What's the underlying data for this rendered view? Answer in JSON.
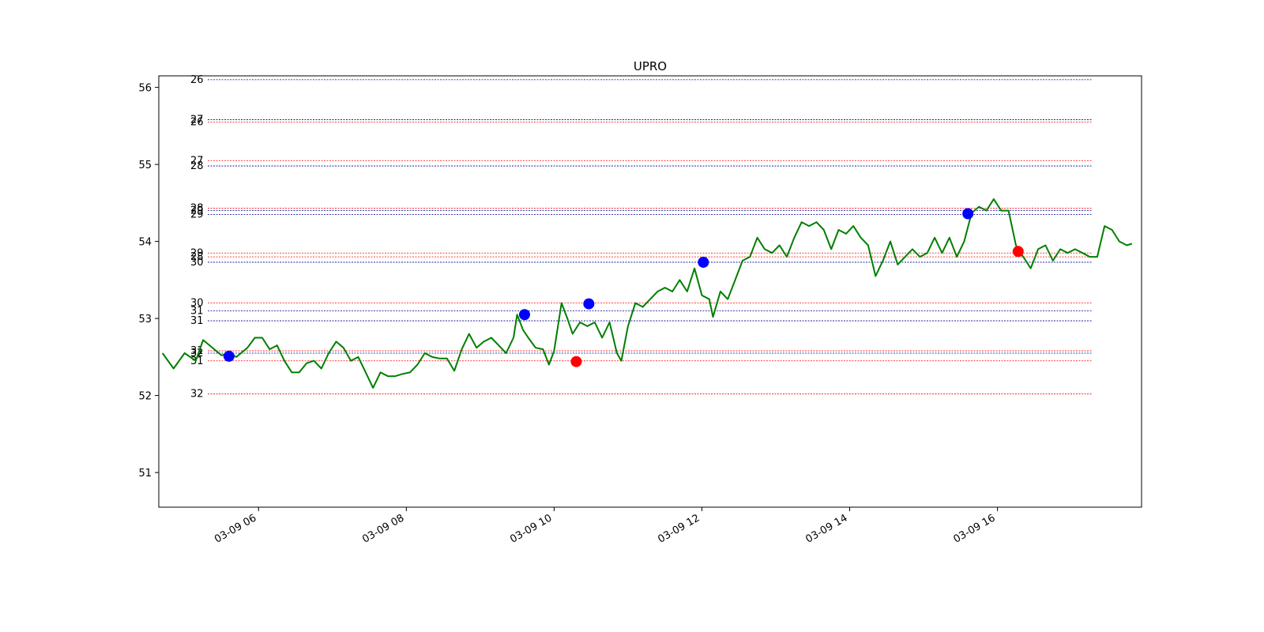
{
  "chart_data": {
    "type": "line",
    "title": "UPRO",
    "xlabel": "",
    "ylabel": "",
    "ylim": [
      50.55,
      56.15
    ],
    "xlim_hours": [
      4.65,
      17.95
    ],
    "grid": false,
    "x_tick_labels": [
      {
        "hour": 6,
        "label": "03-09 06"
      },
      {
        "hour": 8,
        "label": "03-09 08"
      },
      {
        "hour": 10,
        "label": "03-09 10"
      },
      {
        "hour": 12,
        "label": "03-09 12"
      },
      {
        "hour": 14,
        "label": "03-09 14"
      },
      {
        "hour": 16,
        "label": "03-09 16"
      }
    ],
    "y_ticks": [
      51,
      52,
      53,
      54,
      55,
      56
    ],
    "price_series": {
      "name": "",
      "color": "#007f00",
      "points": [
        [
          4.7,
          52.55
        ],
        [
          4.85,
          52.35
        ],
        [
          5.0,
          52.55
        ],
        [
          5.15,
          52.45
        ],
        [
          5.25,
          52.72
        ],
        [
          5.4,
          52.6
        ],
        [
          5.5,
          52.52
        ],
        [
          5.6,
          52.55
        ],
        [
          5.7,
          52.5
        ],
        [
          5.85,
          52.62
        ],
        [
          5.95,
          52.75
        ],
        [
          6.05,
          52.75
        ],
        [
          6.15,
          52.6
        ],
        [
          6.25,
          52.65
        ],
        [
          6.35,
          52.45
        ],
        [
          6.45,
          52.3
        ],
        [
          6.55,
          52.3
        ],
        [
          6.65,
          52.42
        ],
        [
          6.75,
          52.45
        ],
        [
          6.85,
          52.35
        ],
        [
          6.95,
          52.55
        ],
        [
          7.05,
          52.7
        ],
        [
          7.15,
          52.62
        ],
        [
          7.25,
          52.45
        ],
        [
          7.35,
          52.5
        ],
        [
          7.45,
          52.3
        ],
        [
          7.55,
          52.1
        ],
        [
          7.65,
          52.3
        ],
        [
          7.75,
          52.25
        ],
        [
          7.85,
          52.25
        ],
        [
          7.95,
          52.28
        ],
        [
          8.05,
          52.3
        ],
        [
          8.15,
          52.4
        ],
        [
          8.25,
          52.55
        ],
        [
          8.35,
          52.5
        ],
        [
          8.45,
          52.48
        ],
        [
          8.55,
          52.48
        ],
        [
          8.65,
          52.32
        ],
        [
          8.75,
          52.6
        ],
        [
          8.85,
          52.8
        ],
        [
          8.95,
          52.62
        ],
        [
          9.05,
          52.7
        ],
        [
          9.15,
          52.75
        ],
        [
          9.25,
          52.65
        ],
        [
          9.35,
          52.55
        ],
        [
          9.45,
          52.75
        ],
        [
          9.5,
          53.05
        ],
        [
          9.58,
          52.85
        ],
        [
          9.65,
          52.75
        ],
        [
          9.75,
          52.62
        ],
        [
          9.85,
          52.6
        ],
        [
          9.93,
          52.4
        ],
        [
          10.0,
          52.58
        ],
        [
          10.1,
          53.2
        ],
        [
          10.18,
          53.0
        ],
        [
          10.25,
          52.8
        ],
        [
          10.35,
          52.95
        ],
        [
          10.45,
          52.9
        ],
        [
          10.55,
          52.95
        ],
        [
          10.65,
          52.75
        ],
        [
          10.75,
          52.95
        ],
        [
          10.85,
          52.55
        ],
        [
          10.91,
          52.45
        ],
        [
          11.0,
          52.9
        ],
        [
          11.1,
          53.2
        ],
        [
          11.2,
          53.15
        ],
        [
          11.3,
          53.25
        ],
        [
          11.4,
          53.35
        ],
        [
          11.5,
          53.4
        ],
        [
          11.6,
          53.35
        ],
        [
          11.7,
          53.5
        ],
        [
          11.8,
          53.35
        ],
        [
          11.9,
          53.65
        ],
        [
          12.0,
          53.3
        ],
        [
          12.1,
          53.25
        ],
        [
          12.15,
          53.02
        ],
        [
          12.25,
          53.35
        ],
        [
          12.35,
          53.25
        ],
        [
          12.45,
          53.5
        ],
        [
          12.55,
          53.75
        ],
        [
          12.65,
          53.8
        ],
        [
          12.75,
          54.05
        ],
        [
          12.85,
          53.9
        ],
        [
          12.95,
          53.85
        ],
        [
          13.05,
          53.95
        ],
        [
          13.15,
          53.8
        ],
        [
          13.25,
          54.05
        ],
        [
          13.35,
          54.25
        ],
        [
          13.45,
          54.2
        ],
        [
          13.55,
          54.25
        ],
        [
          13.65,
          54.15
        ],
        [
          13.75,
          53.9
        ],
        [
          13.85,
          54.15
        ],
        [
          13.95,
          54.1
        ],
        [
          14.05,
          54.2
        ],
        [
          14.15,
          54.05
        ],
        [
          14.25,
          53.95
        ],
        [
          14.35,
          53.55
        ],
        [
          14.45,
          53.75
        ],
        [
          14.55,
          54.0
        ],
        [
          14.65,
          53.7
        ],
        [
          14.75,
          53.8
        ],
        [
          14.85,
          53.9
        ],
        [
          14.95,
          53.8
        ],
        [
          15.05,
          53.85
        ],
        [
          15.15,
          54.05
        ],
        [
          15.25,
          53.85
        ],
        [
          15.35,
          54.05
        ],
        [
          15.45,
          53.8
        ],
        [
          15.55,
          54.0
        ],
        [
          15.65,
          54.37
        ],
        [
          15.75,
          54.45
        ],
        [
          15.85,
          54.4
        ],
        [
          15.95,
          54.55
        ],
        [
          16.05,
          54.4
        ],
        [
          16.15,
          54.4
        ],
        [
          16.25,
          53.95
        ],
        [
          16.35,
          53.8
        ],
        [
          16.45,
          53.65
        ],
        [
          16.55,
          53.9
        ],
        [
          16.65,
          53.95
        ],
        [
          16.75,
          53.75
        ],
        [
          16.85,
          53.9
        ],
        [
          16.95,
          53.85
        ],
        [
          17.05,
          53.9
        ],
        [
          17.15,
          53.85
        ],
        [
          17.25,
          53.8
        ],
        [
          17.35,
          53.8
        ],
        [
          17.45,
          54.2
        ],
        [
          17.55,
          54.15
        ],
        [
          17.65,
          54.0
        ],
        [
          17.75,
          53.95
        ],
        [
          17.82,
          53.97
        ]
      ]
    },
    "markers": [
      {
        "hour": 5.6,
        "price": 52.51,
        "color": "#0000ff"
      },
      {
        "hour": 9.6,
        "price": 53.05,
        "color": "#0000ff"
      },
      {
        "hour": 10.3,
        "price": 52.44,
        "color": "#ff0000"
      },
      {
        "hour": 10.47,
        "price": 53.19,
        "color": "#0000ff"
      },
      {
        "hour": 12.02,
        "price": 53.73,
        "color": "#0000ff"
      },
      {
        "hour": 15.6,
        "price": 54.36,
        "color": "#0000ff"
      },
      {
        "hour": 16.28,
        "price": 53.87,
        "color": "#ff0000"
      }
    ],
    "levels": [
      {
        "label": "26",
        "price": 56.1,
        "color": "#00008b"
      },
      {
        "label": "27",
        "price": 55.58,
        "color": "#00008b"
      },
      {
        "label": "26",
        "price": 55.55,
        "color": "#ff0000"
      },
      {
        "label": "27",
        "price": 55.05,
        "color": "#ff0000"
      },
      {
        "label": "28",
        "price": 54.98,
        "color": "#00008b"
      },
      {
        "label": "28",
        "price": 54.43,
        "color": "#ff0000"
      },
      {
        "label": "29",
        "price": 54.4,
        "color": "#00008b"
      },
      {
        "label": "29",
        "price": 54.35,
        "color": "#00008b"
      },
      {
        "label": "29",
        "price": 53.85,
        "color": "#ff0000"
      },
      {
        "label": "28",
        "price": 53.8,
        "color": "#ff0000"
      },
      {
        "label": "30",
        "price": 53.73,
        "color": "#00008b"
      },
      {
        "label": "30",
        "price": 53.2,
        "color": "#ff0000"
      },
      {
        "label": "31",
        "price": 53.1,
        "color": "#00008b"
      },
      {
        "label": "31",
        "price": 52.97,
        "color": "#00008b"
      },
      {
        "label": "31",
        "price": 52.58,
        "color": "#ff0000"
      },
      {
        "label": "32",
        "price": 52.55,
        "color": "#00008b"
      },
      {
        "label": "31",
        "price": 52.45,
        "color": "#ff0000"
      },
      {
        "label": "32",
        "price": 52.02,
        "color": "#ff0000"
      }
    ]
  }
}
